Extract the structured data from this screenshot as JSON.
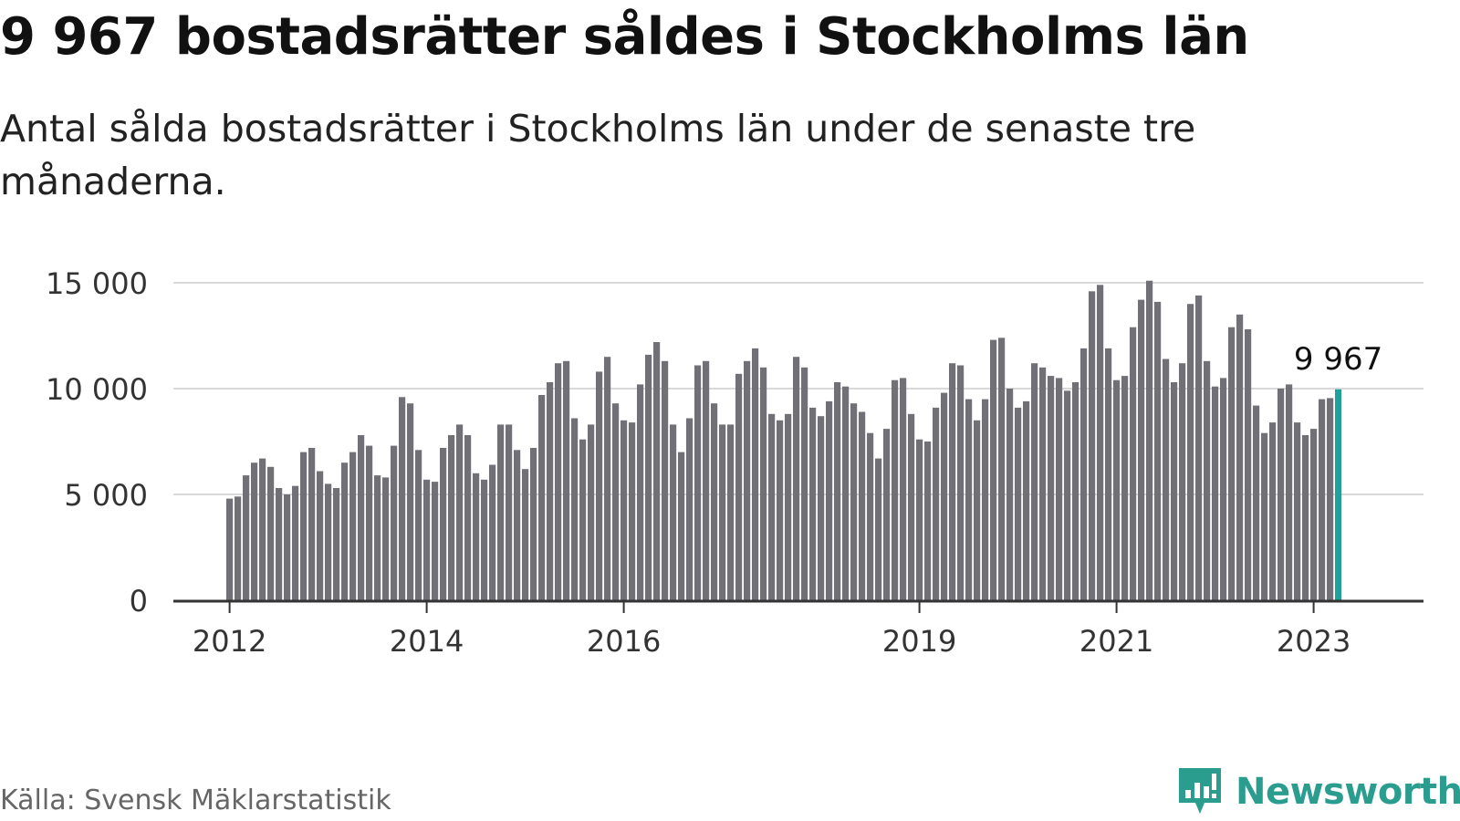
{
  "header": {
    "title": "9 967 bostadsrätter såldes i Stockholms län",
    "subtitle": "Antal sålda bostadsrätter i Stockholms län under de senaste tre månaderna."
  },
  "footer": {
    "source": "Källa: Svensk Mäklarstatistik",
    "brand": "Newsworthy"
  },
  "colors": {
    "bar": "#717076",
    "highlight": "#1ba39c",
    "grid": "#d9d9d9",
    "axis": "#333333",
    "brand": "#2a9d8f"
  },
  "chart_data": {
    "type": "bar",
    "title": "9 967 bostadsrätter såldes i Stockholms län",
    "xlabel": "",
    "ylabel": "",
    "ylim": [
      0,
      15000
    ],
    "yticks": [
      0,
      5000,
      10000,
      15000
    ],
    "ytick_labels": [
      "0",
      "5 000",
      "10 000",
      "15 000"
    ],
    "xtick_labels": [
      "2012",
      "2014",
      "2016",
      "2019",
      "2021",
      "2023"
    ],
    "xtick_index": [
      0,
      24,
      48,
      84,
      108,
      132
    ],
    "highlight_index": 135,
    "highlight_label": "9 967",
    "grid": true,
    "series": [
      {
        "name": "Antal sålda bostadsrätter",
        "values": [
          4800,
          4900,
          5900,
          6500,
          6700,
          6300,
          5300,
          5000,
          5400,
          7000,
          7200,
          6100,
          5500,
          5300,
          6500,
          7000,
          7800,
          7300,
          5900,
          5800,
          7300,
          9600,
          9300,
          7100,
          5700,
          5600,
          7200,
          7800,
          8300,
          7800,
          6000,
          5700,
          6400,
          8300,
          8300,
          7100,
          6200,
          7200,
          9700,
          10300,
          11200,
          11300,
          8600,
          7600,
          8300,
          10800,
          11500,
          9300,
          8500,
          8400,
          10200,
          11600,
          12200,
          11300,
          8300,
          7000,
          8600,
          11100,
          11300,
          9300,
          8300,
          8300,
          10700,
          11300,
          11900,
          11000,
          8800,
          8500,
          8800,
          11500,
          11000,
          9100,
          8700,
          9400,
          10300,
          10100,
          9300,
          8900,
          7900,
          6700,
          8100,
          10400,
          10500,
          8800,
          7600,
          7500,
          9100,
          9800,
          11200,
          11100,
          9500,
          8500,
          9500,
          12300,
          12400,
          10000,
          9100,
          9400,
          11200,
          11000,
          10600,
          10500,
          9900,
          10300,
          11900,
          14600,
          14900,
          11900,
          10400,
          10600,
          12900,
          14200,
          15100,
          14100,
          11400,
          10300,
          11200,
          14000,
          14400,
          11300,
          10100,
          10500,
          12900,
          13500,
          12800,
          9200,
          7900,
          8400,
          10000,
          10200,
          8400,
          7800,
          8100,
          9500,
          9550,
          9967
        ]
      }
    ]
  }
}
